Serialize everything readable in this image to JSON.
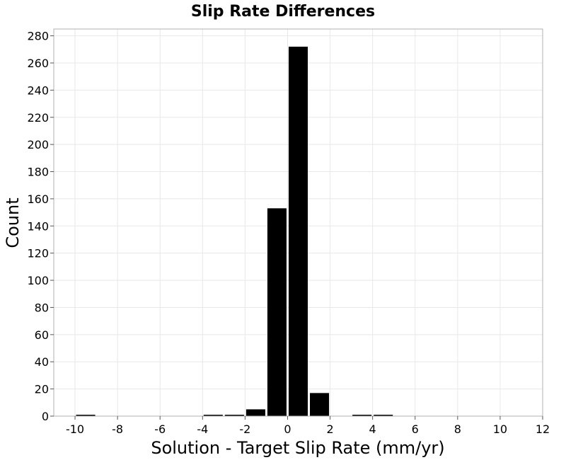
{
  "chart_data": {
    "type": "bar",
    "title": "Slip Rate Differences",
    "xlabel": "Solution - Target Slip Rate (mm/yr)",
    "ylabel": "Count",
    "xlim": [
      -11,
      12
    ],
    "ylim": [
      0,
      285
    ],
    "x_ticks": [
      -10,
      -8,
      -6,
      -4,
      -2,
      0,
      2,
      4,
      6,
      8,
      10,
      12
    ],
    "y_ticks": [
      0,
      20,
      40,
      60,
      80,
      100,
      120,
      140,
      160,
      180,
      200,
      220,
      240,
      260,
      280
    ],
    "bin_width": 1,
    "grid": true,
    "bar_color": "#000000",
    "bars": [
      {
        "x": -9.5,
        "value": 1
      },
      {
        "x": -3.5,
        "value": 1
      },
      {
        "x": -2.5,
        "value": 1
      },
      {
        "x": -1.5,
        "value": 5
      },
      {
        "x": -0.5,
        "value": 153
      },
      {
        "x": 0.5,
        "value": 272
      },
      {
        "x": 1.5,
        "value": 17
      },
      {
        "x": 3.5,
        "value": 1
      },
      {
        "x": 4.5,
        "value": 1
      }
    ]
  }
}
